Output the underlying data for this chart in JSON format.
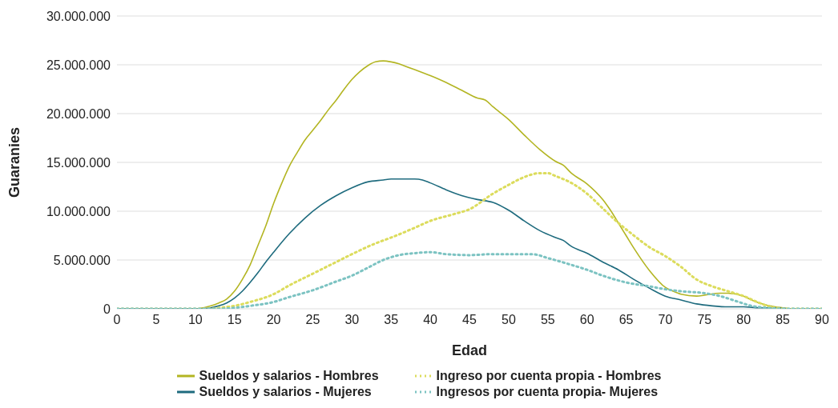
{
  "chart_data": {
    "type": "line",
    "xlabel": "Edad",
    "ylabel": "Guaranies",
    "xlim": [
      0,
      90
    ],
    "xticks": [
      0,
      5,
      10,
      15,
      20,
      25,
      30,
      35,
      40,
      45,
      50,
      55,
      60,
      65,
      70,
      75,
      80,
      85,
      90
    ],
    "ylim": [
      0,
      30000000
    ],
    "yticks": [
      {
        "value": 0,
        "label": "0"
      },
      {
        "value": 5000000,
        "label": "5.000.000"
      },
      {
        "value": 10000000,
        "label": "10.000.000"
      },
      {
        "value": 15000000,
        "label": "15.000.000"
      },
      {
        "value": 20000000,
        "label": "20.000.000"
      },
      {
        "value": 25000000,
        "label": "25.000.000"
      },
      {
        "value": 30000000,
        "label": "30.000.000"
      }
    ],
    "grid": "y",
    "legend": "bottom",
    "marker": "none",
    "series": [
      {
        "name": "Sueldos y salarios - Hombres",
        "color": "#b3b522",
        "line_style": "solid",
        "x": [
          0,
          5,
          10,
          11,
          12,
          13,
          14,
          15,
          16,
          17,
          18,
          19,
          20,
          21,
          22,
          23,
          24,
          25,
          26,
          27,
          28,
          29,
          30,
          31,
          32,
          33,
          34,
          35,
          36,
          37,
          38,
          39,
          40,
          42,
          44,
          46,
          47,
          48,
          50,
          52,
          54,
          56,
          57,
          58,
          60,
          62,
          63,
          64,
          65,
          66,
          68,
          70,
          71,
          72,
          74,
          75,
          77,
          78,
          80,
          81,
          82,
          84,
          85,
          86,
          90
        ],
        "values": [
          0,
          0,
          0,
          100000,
          300000,
          600000,
          1000000,
          1800000,
          3000000,
          4500000,
          6500000,
          8500000,
          10800000,
          12800000,
          14600000,
          16000000,
          17300000,
          18300000,
          19300000,
          20400000,
          21400000,
          22500000,
          23500000,
          24300000,
          24900000,
          25300000,
          25400000,
          25300000,
          25100000,
          24800000,
          24500000,
          24200000,
          23900000,
          23200000,
          22400000,
          21600000,
          21400000,
          20700000,
          19400000,
          17800000,
          16300000,
          15100000,
          14700000,
          13900000,
          12800000,
          11200000,
          10100000,
          8800000,
          7500000,
          6200000,
          3900000,
          2200000,
          1800000,
          1500000,
          1300000,
          1400000,
          1600000,
          1600000,
          1300000,
          900000,
          600000,
          200000,
          100000,
          0,
          0
        ]
      },
      {
        "name": "Sueldos y salarios - Mujeres",
        "color": "#1e6b7e",
        "line_style": "solid",
        "x": [
          0,
          5,
          11,
          12,
          13,
          14,
          15,
          16,
          17,
          18,
          19,
          20,
          22,
          24,
          26,
          28,
          30,
          32,
          34,
          35,
          36,
          38,
          39,
          40,
          42,
          44,
          46,
          48,
          50,
          52,
          54,
          56,
          57,
          58,
          60,
          62,
          64,
          66,
          68,
          70,
          72,
          74,
          76,
          78,
          80,
          82,
          84,
          86,
          90
        ],
        "values": [
          0,
          0,
          0,
          100000,
          300000,
          600000,
          1100000,
          1800000,
          2700000,
          3700000,
          4800000,
          5800000,
          7700000,
          9300000,
          10600000,
          11600000,
          12400000,
          13000000,
          13200000,
          13300000,
          13300000,
          13300000,
          13200000,
          12900000,
          12200000,
          11600000,
          11200000,
          10900000,
          10100000,
          9000000,
          8000000,
          7300000,
          7000000,
          6400000,
          5700000,
          4800000,
          4000000,
          3000000,
          2100000,
          1300000,
          900000,
          500000,
          300000,
          200000,
          200000,
          100000,
          100000,
          0,
          0
        ]
      },
      {
        "name": "Ingreso por cuenta propia - Hombres",
        "color": "#dcdc5c",
        "line_style": "dotted",
        "x": [
          0,
          12,
          13,
          15,
          17,
          20,
          22,
          25,
          28,
          30,
          33,
          35,
          38,
          40,
          43,
          45,
          48,
          50,
          52,
          54,
          55,
          56,
          58,
          60,
          62,
          64,
          66,
          68,
          70,
          72,
          74,
          76,
          78,
          80,
          82,
          84,
          86,
          90
        ],
        "values": [
          0,
          0,
          100000,
          300000,
          700000,
          1500000,
          2400000,
          3600000,
          4800000,
          5600000,
          6700000,
          7300000,
          8300000,
          9000000,
          9700000,
          10200000,
          11800000,
          12700000,
          13500000,
          13900000,
          13900000,
          13600000,
          12900000,
          11800000,
          10300000,
          8800000,
          7500000,
          6300000,
          5400000,
          4300000,
          3000000,
          2300000,
          1800000,
          1300000,
          600000,
          100000,
          0,
          0
        ]
      },
      {
        "name": "Ingresos por cuenta propia- Mujeres",
        "color": "#7cc3c2",
        "line_style": "dotted",
        "x": [
          0,
          13,
          15,
          17,
          20,
          22,
          25,
          28,
          30,
          32,
          34,
          36,
          38,
          40,
          42,
          45,
          48,
          50,
          53,
          55,
          58,
          60,
          62,
          65,
          68,
          70,
          72,
          75,
          77,
          79,
          81,
          83,
          85,
          90
        ],
        "values": [
          0,
          0,
          100000,
          300000,
          700000,
          1200000,
          1900000,
          2800000,
          3400000,
          4200000,
          5000000,
          5500000,
          5700000,
          5800000,
          5600000,
          5500000,
          5600000,
          5600000,
          5600000,
          5200000,
          4500000,
          4000000,
          3400000,
          2700000,
          2300000,
          2000000,
          1800000,
          1600000,
          1300000,
          800000,
          300000,
          100000,
          0,
          0
        ]
      }
    ]
  }
}
